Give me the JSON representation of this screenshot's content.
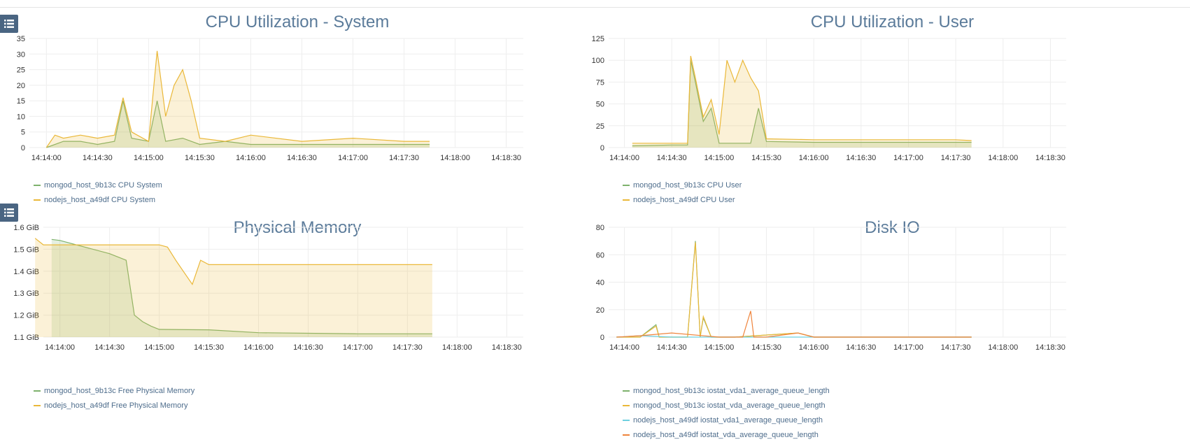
{
  "chart_data": [
    {
      "type": "area",
      "title": "CPU Utilization - System",
      "xlabel": "",
      "ylabel": "",
      "x_ticks": [
        "14:14:00",
        "14:14:30",
        "14:15:00",
        "14:15:30",
        "14:16:00",
        "14:16:30",
        "14:17:00",
        "14:17:30",
        "14:18:00",
        "14:18:30"
      ],
      "y_ticks": [
        "0",
        "5",
        "10",
        "15",
        "20",
        "25",
        "30",
        "35"
      ],
      "ylim": [
        0,
        35
      ],
      "xlim": [
        "14:13:50",
        "14:18:40"
      ],
      "grid": true,
      "legend_placement": "bottom-left",
      "series": [
        {
          "name": "mongod_host_9b13c CPU System",
          "color": "#7eb26d",
          "x": [
            "14:14:00",
            "14:14:10",
            "14:14:20",
            "14:14:30",
            "14:14:40",
            "14:14:45",
            "14:14:50",
            "14:15:00",
            "14:15:05",
            "14:15:10",
            "14:15:20",
            "14:15:30",
            "14:15:45",
            "14:16:00",
            "14:16:30",
            "14:17:00",
            "14:17:30",
            "14:17:45"
          ],
          "values": [
            0,
            2,
            2,
            1,
            2,
            15,
            3,
            2,
            15,
            2,
            3,
            1,
            2,
            1,
            1,
            1,
            1,
            1
          ]
        },
        {
          "name": "nodejs_host_a49df CPU System",
          "color": "#eab839",
          "x": [
            "14:14:00",
            "14:14:05",
            "14:14:10",
            "14:14:20",
            "14:14:30",
            "14:14:40",
            "14:14:45",
            "14:14:50",
            "14:15:00",
            "14:15:05",
            "14:15:10",
            "14:15:15",
            "14:15:20",
            "14:15:25",
            "14:15:30",
            "14:15:45",
            "14:16:00",
            "14:16:30",
            "14:17:00",
            "14:17:30",
            "14:17:45"
          ],
          "values": [
            0,
            4,
            3,
            4,
            3,
            4,
            16,
            5,
            2,
            31,
            10,
            20,
            25,
            15,
            3,
            2,
            4,
            2,
            3,
            2,
            2
          ]
        }
      ]
    },
    {
      "type": "area",
      "title": "CPU Utilization - User",
      "xlabel": "",
      "ylabel": "",
      "x_ticks": [
        "14:14:00",
        "14:14:30",
        "14:15:00",
        "14:15:30",
        "14:16:00",
        "14:16:30",
        "14:17:00",
        "14:17:30",
        "14:18:00",
        "14:18:30"
      ],
      "y_ticks": [
        "0",
        "25",
        "50",
        "75",
        "100",
        "125"
      ],
      "ylim": [
        0,
        125
      ],
      "xlim": [
        "14:13:50",
        "14:18:40"
      ],
      "grid": true,
      "legend_placement": "bottom-left",
      "series": [
        {
          "name": "mongod_host_9b13c CPU User",
          "color": "#7eb26d",
          "x": [
            "14:14:05",
            "14:14:30",
            "14:14:40",
            "14:14:42",
            "14:14:45",
            "14:14:50",
            "14:14:55",
            "14:15:00",
            "14:15:10",
            "14:15:20",
            "14:15:25",
            "14:15:30",
            "14:16:00",
            "14:16:30",
            "14:17:00",
            "14:17:30",
            "14:17:40"
          ],
          "values": [
            2,
            3,
            3,
            100,
            75,
            30,
            45,
            5,
            5,
            5,
            45,
            7,
            6,
            6,
            6,
            6,
            6
          ]
        },
        {
          "name": "nodejs_host_a49df CPU User",
          "color": "#eab839",
          "x": [
            "14:14:05",
            "14:14:30",
            "14:14:40",
            "14:14:42",
            "14:14:45",
            "14:14:50",
            "14:14:55",
            "14:15:00",
            "14:15:05",
            "14:15:10",
            "14:15:15",
            "14:15:20",
            "14:15:25",
            "14:15:30",
            "14:16:00",
            "14:16:30",
            "14:17:00",
            "14:17:30",
            "14:17:40"
          ],
          "values": [
            5,
            5,
            5,
            105,
            80,
            35,
            55,
            15,
            100,
            75,
            100,
            80,
            65,
            10,
            9,
            9,
            9,
            9,
            8
          ]
        }
      ]
    },
    {
      "type": "area",
      "title": "Physical Memory",
      "xlabel": "",
      "ylabel": "",
      "x_ticks": [
        "14:14:00",
        "14:14:30",
        "14:15:00",
        "14:15:30",
        "14:16:00",
        "14:16:30",
        "14:17:00",
        "14:17:30",
        "14:18:00",
        "14:18:30"
      ],
      "y_ticks": [
        "1.1 GiB",
        "1.2 GiB",
        "1.3 GiB",
        "1.4 GiB",
        "1.5 GiB",
        "1.6 GiB"
      ],
      "ylim": [
        1.1,
        1.6
      ],
      "xlim": [
        "14:13:50",
        "14:18:40"
      ],
      "grid": true,
      "legend_placement": "bottom-left",
      "series": [
        {
          "name": "mongod_host_9b13c Free Physical Memory",
          "color": "#7eb26d",
          "x": [
            "14:13:55",
            "14:14:00",
            "14:14:30",
            "14:14:40",
            "14:14:45",
            "14:14:50",
            "14:14:55",
            "14:15:00",
            "14:15:30",
            "14:16:00",
            "14:17:00",
            "14:17:45"
          ],
          "values": [
            1.545,
            1.54,
            1.48,
            1.45,
            1.2,
            1.17,
            1.15,
            1.135,
            1.133,
            1.12,
            1.115,
            1.115
          ]
        },
        {
          "name": "nodejs_host_a49df Free Physical Memory",
          "color": "#eab839",
          "x": [
            "14:13:45",
            "14:13:50",
            "14:13:55",
            "14:14:30",
            "14:15:00",
            "14:15:05",
            "14:15:10",
            "14:15:20",
            "14:15:25",
            "14:15:30",
            "14:16:00",
            "14:17:00",
            "14:17:45"
          ],
          "values": [
            1.55,
            1.52,
            1.52,
            1.52,
            1.52,
            1.51,
            1.45,
            1.34,
            1.45,
            1.43,
            1.43,
            1.43,
            1.43
          ]
        }
      ]
    },
    {
      "type": "line",
      "title": "Disk IO",
      "xlabel": "",
      "ylabel": "",
      "x_ticks": [
        "14:14:00",
        "14:14:30",
        "14:15:00",
        "14:15:30",
        "14:16:00",
        "14:16:30",
        "14:17:00",
        "14:17:30",
        "14:18:00",
        "14:18:30"
      ],
      "y_ticks": [
        "0",
        "20",
        "40",
        "60",
        "80"
      ],
      "ylim": [
        0,
        80
      ],
      "xlim": [
        "14:13:50",
        "14:18:40"
      ],
      "grid": true,
      "legend_placement": "bottom-left",
      "series": [
        {
          "name": "mongod_host_9b13c iostat_vda1_average_queue_length",
          "color": "#7eb26d",
          "x": [
            "14:13:55",
            "14:14:10",
            "14:14:20",
            "14:14:22",
            "14:14:25",
            "14:14:40",
            "14:14:45",
            "14:14:48",
            "14:14:50",
            "14:14:55",
            "14:15:00",
            "14:15:10",
            "14:15:50",
            "14:16:00",
            "14:17:00",
            "14:17:40"
          ],
          "values": [
            0,
            0,
            9,
            0,
            0,
            0,
            70,
            0,
            14,
            0,
            0,
            0,
            3,
            0,
            0,
            0
          ]
        },
        {
          "name": "mongod_host_9b13c iostat_vda_average_queue_length",
          "color": "#eab839",
          "x": [
            "14:13:55",
            "14:14:10",
            "14:14:20",
            "14:14:22",
            "14:14:25",
            "14:14:40",
            "14:14:45",
            "14:14:48",
            "14:14:50",
            "14:14:55",
            "14:15:00",
            "14:15:10",
            "14:15:50",
            "14:16:00",
            "14:17:00",
            "14:17:40"
          ],
          "values": [
            0,
            0,
            8,
            0,
            0,
            0,
            69,
            0,
            15,
            0,
            0,
            0,
            3,
            0,
            0,
            0
          ]
        },
        {
          "name": "nodejs_host_a49df iostat_vda1_average_queue_length",
          "color": "#6ed0e0",
          "x": [
            "14:13:55",
            "14:14:10",
            "14:14:30",
            "14:15:00",
            "14:15:20",
            "14:15:30",
            "14:16:00",
            "14:17:00",
            "14:17:40"
          ],
          "values": [
            0,
            1,
            0,
            0,
            0,
            0,
            0,
            0,
            0
          ]
        },
        {
          "name": "nodejs_host_a49df iostat_vda_average_queue_length",
          "color": "#ef843c",
          "x": [
            "14:13:55",
            "14:14:10",
            "14:14:30",
            "14:15:00",
            "14:15:15",
            "14:15:20",
            "14:15:22",
            "14:15:30",
            "14:15:50",
            "14:16:00",
            "14:17:00",
            "14:17:40"
          ],
          "values": [
            0,
            1,
            3,
            0,
            0,
            19,
            0,
            0,
            3,
            0,
            0,
            0
          ]
        }
      ]
    }
  ]
}
